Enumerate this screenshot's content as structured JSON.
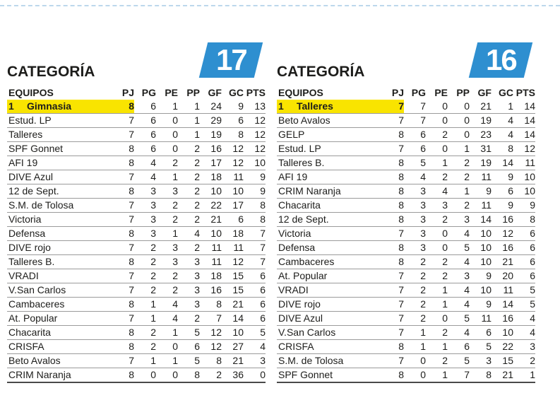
{
  "colors": {
    "badge_blue": "#2e8fd0",
    "highlight_yellow": "#f9e400",
    "text": "#1d1d1b",
    "row_line": "#9b9b9b",
    "bottom_line": "#4a4a4a",
    "top_divider": "#bcd7ec"
  },
  "columns": [
    "EQUIPOS",
    "PJ",
    "PG",
    "PE",
    "PP",
    "GF",
    "GC",
    "PTS"
  ],
  "tables": [
    {
      "title": "CATEGORÍA",
      "category_number": "17",
      "rows": [
        {
          "pos": "1",
          "team": "Gimnasia",
          "highlight": true,
          "pj": 8,
          "pg": 6,
          "pe": 1,
          "pp": 1,
          "gf": 24,
          "gc": 9,
          "pts": 13
        },
        {
          "team": "Estud. LP",
          "pj": 7,
          "pg": 6,
          "pe": 0,
          "pp": 1,
          "gf": 29,
          "gc": 6,
          "pts": 12
        },
        {
          "team": "Talleres",
          "pj": 7,
          "pg": 6,
          "pe": 0,
          "pp": 1,
          "gf": 19,
          "gc": 8,
          "pts": 12
        },
        {
          "team": "SPF Gonnet",
          "pj": 8,
          "pg": 6,
          "pe": 0,
          "pp": 2,
          "gf": 16,
          "gc": 12,
          "pts": 12
        },
        {
          "team": "AFI 19",
          "pj": 8,
          "pg": 4,
          "pe": 2,
          "pp": 2,
          "gf": 17,
          "gc": 12,
          "pts": 10
        },
        {
          "team": "DIVE Azul",
          "pj": 7,
          "pg": 4,
          "pe": 1,
          "pp": 2,
          "gf": 18,
          "gc": 11,
          "pts": 9
        },
        {
          "team": "12 de Sept.",
          "pj": 8,
          "pg": 3,
          "pe": 3,
          "pp": 2,
          "gf": 10,
          "gc": 10,
          "pts": 9
        },
        {
          "team": "S.M. de Tolosa",
          "pj": 7,
          "pg": 3,
          "pe": 2,
          "pp": 2,
          "gf": 22,
          "gc": 17,
          "pts": 8
        },
        {
          "team": "Victoria",
          "pj": 7,
          "pg": 3,
          "pe": 2,
          "pp": 2,
          "gf": 21,
          "gc": 6,
          "pts": 8
        },
        {
          "team": "Defensa",
          "pj": 8,
          "pg": 3,
          "pe": 1,
          "pp": 4,
          "gf": 10,
          "gc": 18,
          "pts": 7
        },
        {
          "team": "DIVE rojo",
          "pj": 7,
          "pg": 2,
          "pe": 3,
          "pp": 2,
          "gf": 11,
          "gc": 11,
          "pts": 7
        },
        {
          "team": "Talleres B.",
          "pj": 8,
          "pg": 2,
          "pe": 3,
          "pp": 3,
          "gf": 11,
          "gc": 12,
          "pts": 7
        },
        {
          "team": "VRADI",
          "pj": 7,
          "pg": 2,
          "pe": 2,
          "pp": 3,
          "gf": 18,
          "gc": 15,
          "pts": 6
        },
        {
          "team": "V.San Carlos",
          "pj": 7,
          "pg": 2,
          "pe": 2,
          "pp": 3,
          "gf": 16,
          "gc": 15,
          "pts": 6
        },
        {
          "team": "Cambaceres",
          "pj": 8,
          "pg": 1,
          "pe": 4,
          "pp": 3,
          "gf": 8,
          "gc": 21,
          "pts": 6
        },
        {
          "team": "At. Popular",
          "pj": 7,
          "pg": 1,
          "pe": 4,
          "pp": 2,
          "gf": 7,
          "gc": 14,
          "pts": 6
        },
        {
          "team": "Chacarita",
          "pj": 8,
          "pg": 2,
          "pe": 1,
          "pp": 5,
          "gf": 12,
          "gc": 10,
          "pts": 5
        },
        {
          "team": "CRISFA",
          "pj": 8,
          "pg": 2,
          "pe": 0,
          "pp": 6,
          "gf": 12,
          "gc": 27,
          "pts": 4
        },
        {
          "team": "Beto Avalos",
          "pj": 7,
          "pg": 1,
          "pe": 1,
          "pp": 5,
          "gf": 8,
          "gc": 21,
          "pts": 3
        },
        {
          "team": "CRIM Naranja",
          "pj": 8,
          "pg": 0,
          "pe": 0,
          "pp": 8,
          "gf": 2,
          "gc": 36,
          "pts": 0
        }
      ]
    },
    {
      "title": "CATEGORÍA",
      "category_number": "16",
      "rows": [
        {
          "pos": "1",
          "team": "Talleres",
          "highlight": true,
          "pj": 7,
          "pg": 7,
          "pe": 0,
          "pp": 0,
          "gf": 21,
          "gc": 1,
          "pts": 14
        },
        {
          "team": "Beto Avalos",
          "pj": 7,
          "pg": 7,
          "pe": 0,
          "pp": 0,
          "gf": 19,
          "gc": 4,
          "pts": 14
        },
        {
          "team": "GELP",
          "pj": 8,
          "pg": 6,
          "pe": 2,
          "pp": 0,
          "gf": 23,
          "gc": 4,
          "pts": 14
        },
        {
          "team": "Estud. LP",
          "pj": 7,
          "pg": 6,
          "pe": 0,
          "pp": 1,
          "gf": 31,
          "gc": 8,
          "pts": 12
        },
        {
          "team": "Talleres B.",
          "pj": 8,
          "pg": 5,
          "pe": 1,
          "pp": 2,
          "gf": 19,
          "gc": 14,
          "pts": 11
        },
        {
          "team": "AFI 19",
          "pj": 8,
          "pg": 4,
          "pe": 2,
          "pp": 2,
          "gf": 11,
          "gc": 9,
          "pts": 10
        },
        {
          "team": "CRIM Naranja",
          "pj": 8,
          "pg": 3,
          "pe": 4,
          "pp": 1,
          "gf": 9,
          "gc": 6,
          "pts": 10
        },
        {
          "team": "Chacarita",
          "pj": 8,
          "pg": 3,
          "pe": 3,
          "pp": 2,
          "gf": 11,
          "gc": 9,
          "pts": 9
        },
        {
          "team": "12 de Sept.",
          "pj": 8,
          "pg": 3,
          "pe": 2,
          "pp": 3,
          "gf": 14,
          "gc": 16,
          "pts": 8
        },
        {
          "team": "Victoria",
          "pj": 7,
          "pg": 3,
          "pe": 0,
          "pp": 4,
          "gf": 10,
          "gc": 12,
          "pts": 6
        },
        {
          "team": "Defensa",
          "pj": 8,
          "pg": 3,
          "pe": 0,
          "pp": 5,
          "gf": 10,
          "gc": 16,
          "pts": 6
        },
        {
          "team": "Cambaceres",
          "pj": 8,
          "pg": 2,
          "pe": 2,
          "pp": 4,
          "gf": 10,
          "gc": 21,
          "pts": 6
        },
        {
          "team": "At. Popular",
          "pj": 7,
          "pg": 2,
          "pe": 2,
          "pp": 3,
          "gf": 9,
          "gc": 20,
          "pts": 6
        },
        {
          "team": "VRADI",
          "pj": 7,
          "pg": 2,
          "pe": 1,
          "pp": 4,
          "gf": 10,
          "gc": 11,
          "pts": 5
        },
        {
          "team": "DIVE rojo",
          "pj": 7,
          "pg": 2,
          "pe": 1,
          "pp": 4,
          "gf": 9,
          "gc": 14,
          "pts": 5
        },
        {
          "team": "DIVE Azul",
          "pj": 7,
          "pg": 2,
          "pe": 0,
          "pp": 5,
          "gf": 11,
          "gc": 16,
          "pts": 4
        },
        {
          "team": "V.San Carlos",
          "pj": 7,
          "pg": 1,
          "pe": 2,
          "pp": 4,
          "gf": 6,
          "gc": 10,
          "pts": 4
        },
        {
          "team": "CRISFA",
          "pj": 8,
          "pg": 1,
          "pe": 1,
          "pp": 6,
          "gf": 5,
          "gc": 22,
          "pts": 3
        },
        {
          "team": "S.M. de Tolosa",
          "pj": 7,
          "pg": 0,
          "pe": 2,
          "pp": 5,
          "gf": 3,
          "gc": 15,
          "pts": 2
        },
        {
          "team": "SPF Gonnet",
          "pj": 8,
          "pg": 0,
          "pe": 1,
          "pp": 7,
          "gf": 8,
          "gc": 21,
          "pts": 1
        }
      ]
    }
  ]
}
